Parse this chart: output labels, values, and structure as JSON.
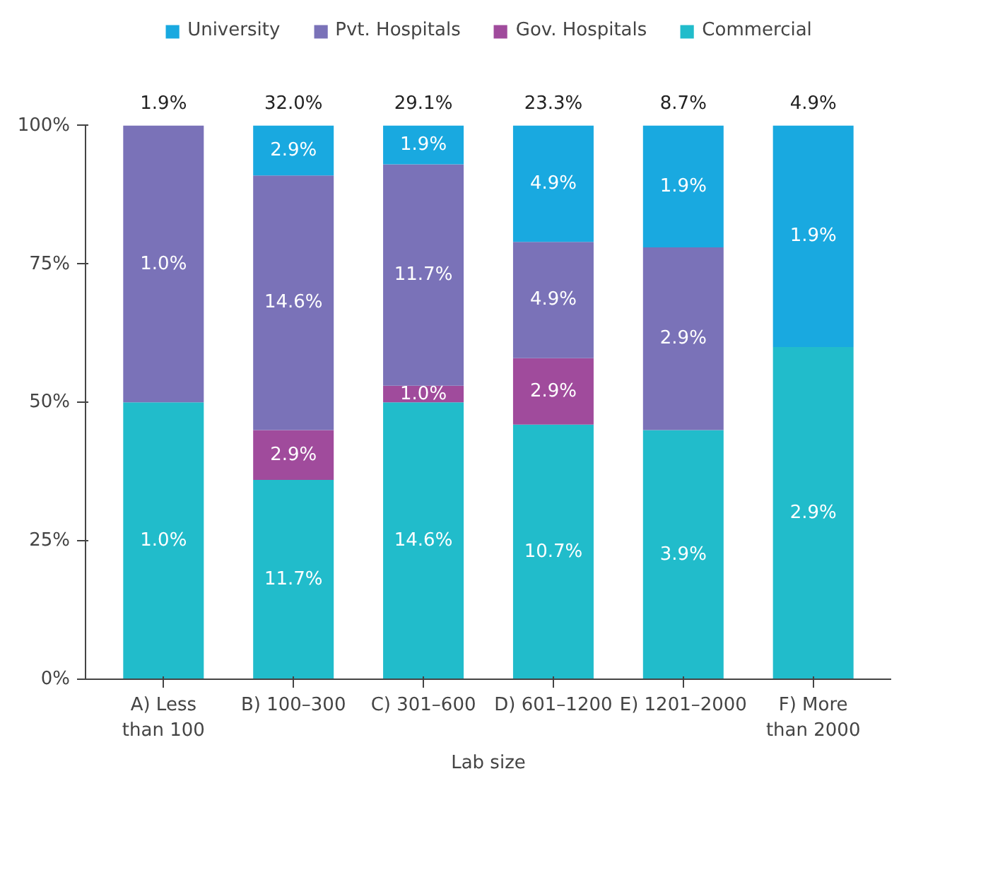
{
  "chart_data": {
    "type": "bar",
    "stacked": true,
    "xlabel": "Lab size",
    "categories": [
      "A) Less\nthan 100",
      "B) 100–300",
      "C) 301–600",
      "D) 601–1200",
      "E) 1201–2000",
      "F) More\nthan 2000"
    ],
    "series": [
      {
        "name": "Commercial",
        "color": "#21bccb",
        "values": [
          50,
          36,
          50,
          46,
          45,
          60
        ]
      },
      {
        "name": "Gov. Hospitals",
        "color": "#a04b9c",
        "values": [
          0,
          9,
          3,
          12,
          0,
          0
        ]
      },
      {
        "name": "Pvt. Hospitals",
        "color": "#7a72b8",
        "values": [
          50,
          46,
          40,
          21,
          33,
          0
        ]
      },
      {
        "name": "University",
        "color": "#19a9e0",
        "values": [
          0,
          9,
          7,
          21,
          22,
          40
        ]
      }
    ],
    "annotations": [
      "1.9%",
      "32.0%",
      "29.1%",
      "23.3%",
      "8.7%",
      "4.9%",
      "1.0%",
      "1.0%",
      "11.7%",
      "2.9%",
      "14.6%",
      "2.9%",
      "14.6%",
      "1.0%",
      "11.7%",
      "1.9%",
      "10.7%",
      "2.9%",
      "4.9%",
      "4.9%",
      "3.9%",
      "2.9%",
      "1.9%",
      "2.9%",
      "1.9%"
    ],
    "ylim": [
      0,
      100
    ],
    "yticks": [
      {
        "value": 0,
        "label": "0%"
      },
      {
        "value": 25,
        "label": "25%"
      },
      {
        "value": 50,
        "label": "50%"
      },
      {
        "value": 75,
        "label": "75%"
      },
      {
        "value": 100,
        "label": "100%"
      }
    ],
    "grid": false,
    "legend": "top"
  }
}
